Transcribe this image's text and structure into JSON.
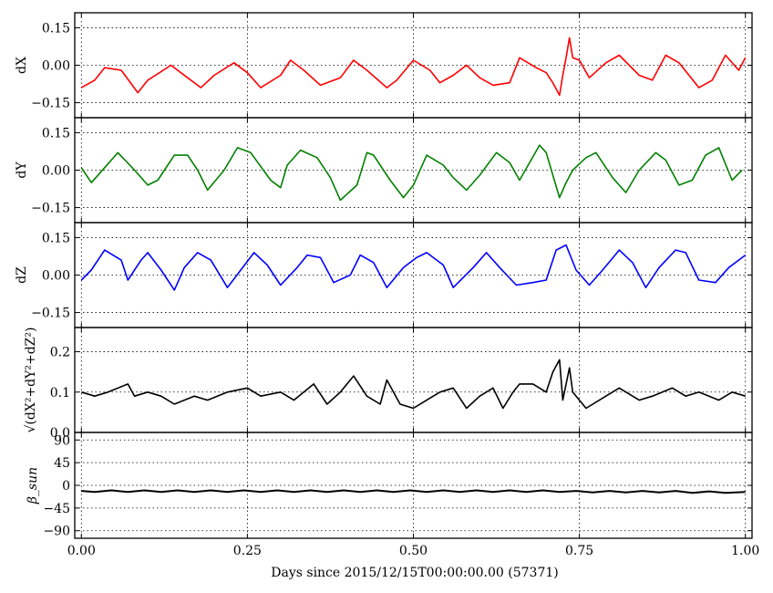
{
  "chart_data": {
    "type": "line",
    "xlabel": "Days since 2015/12/15T00:00:00.00 (57371)",
    "xlim": [
      -0.01,
      1.01
    ],
    "xticks": [
      0.0,
      0.25,
      0.5,
      0.75,
      1.0
    ],
    "xtick_labels": [
      "0.00",
      "0.25",
      "0.50",
      "0.75",
      "1.00"
    ],
    "grid": true,
    "panels": [
      {
        "ylabel": "dX",
        "ylim": [
          -0.21,
          0.21
        ],
        "yticks": [
          -0.15,
          0.0,
          0.15
        ],
        "ytick_labels": [
          "−0.15",
          "0.00",
          "0.15"
        ],
        "color": "#ff0000",
        "series": [
          {
            "x": [
              0.0,
              0.02,
              0.035,
              0.06,
              0.085,
              0.1,
              0.135,
              0.16,
              0.18,
              0.2,
              0.23,
              0.25,
              0.27,
              0.3,
              0.315,
              0.335,
              0.36,
              0.39,
              0.41,
              0.43,
              0.46,
              0.475,
              0.5,
              0.525,
              0.54,
              0.56,
              0.58,
              0.6,
              0.62,
              0.645,
              0.66,
              0.685,
              0.7,
              0.71,
              0.72,
              0.725,
              0.73,
              0.735,
              0.74,
              0.75,
              0.765,
              0.79,
              0.81,
              0.84,
              0.86,
              0.88,
              0.9,
              0.93,
              0.95,
              0.97,
              0.99,
              1.0
            ],
            "y": [
              -0.09,
              -0.06,
              -0.01,
              -0.02,
              -0.11,
              -0.06,
              0.0,
              -0.05,
              -0.09,
              -0.04,
              0.01,
              -0.03,
              -0.09,
              -0.04,
              0.02,
              -0.02,
              -0.08,
              -0.05,
              0.02,
              -0.02,
              -0.09,
              -0.06,
              0.02,
              -0.02,
              -0.07,
              -0.04,
              0.0,
              -0.05,
              -0.08,
              -0.07,
              0.03,
              -0.01,
              -0.03,
              -0.07,
              -0.12,
              -0.04,
              0.03,
              0.11,
              0.03,
              0.02,
              -0.05,
              0.01,
              0.04,
              -0.04,
              -0.06,
              0.04,
              0.01,
              -0.09,
              -0.06,
              0.04,
              -0.02,
              0.03
            ]
          }
        ]
      },
      {
        "ylabel": "dY",
        "ylim": [
          -0.21,
          0.21
        ],
        "yticks": [
          -0.15,
          0.0,
          0.15
        ],
        "ytick_labels": [
          "−0.15",
          "0.00",
          "0.15"
        ],
        "color": "#008000",
        "series": [
          {
            "x": [
              0.0,
              0.015,
              0.035,
              0.055,
              0.08,
              0.1,
              0.115,
              0.14,
              0.16,
              0.175,
              0.19,
              0.215,
              0.235,
              0.255,
              0.285,
              0.3,
              0.31,
              0.33,
              0.355,
              0.375,
              0.39,
              0.415,
              0.43,
              0.44,
              0.465,
              0.485,
              0.5,
              0.52,
              0.545,
              0.56,
              0.58,
              0.6,
              0.625,
              0.645,
              0.66,
              0.69,
              0.7,
              0.71,
              0.72,
              0.73,
              0.74,
              0.76,
              0.775,
              0.8,
              0.82,
              0.84,
              0.865,
              0.88,
              0.9,
              0.92,
              0.94,
              0.96,
              0.98,
              0.995
            ],
            "y": [
              0.01,
              -0.05,
              0.01,
              0.07,
              0.0,
              -0.06,
              -0.04,
              0.06,
              0.06,
              0.0,
              -0.08,
              0.0,
              0.09,
              0.07,
              -0.04,
              -0.07,
              0.02,
              0.08,
              0.05,
              -0.03,
              -0.12,
              -0.06,
              0.07,
              0.06,
              -0.04,
              -0.11,
              -0.06,
              0.06,
              0.02,
              -0.03,
              -0.08,
              -0.02,
              0.07,
              0.03,
              -0.04,
              0.1,
              0.07,
              -0.02,
              -0.11,
              -0.05,
              0.0,
              0.05,
              0.07,
              -0.03,
              -0.09,
              0.0,
              0.07,
              0.04,
              -0.06,
              -0.04,
              0.06,
              0.09,
              -0.04,
              0.0
            ]
          }
        ]
      },
      {
        "ylabel": "dZ",
        "ylim": [
          -0.21,
          0.21
        ],
        "yticks": [
          -0.15,
          0.0,
          0.15
        ],
        "ytick_labels": [
          "−0.15",
          "0.00",
          "0.15"
        ],
        "color": "#0000ff",
        "series": [
          {
            "x": [
              0.0,
              0.015,
              0.035,
              0.06,
              0.07,
              0.09,
              0.1,
              0.12,
              0.14,
              0.155,
              0.175,
              0.195,
              0.22,
              0.24,
              0.26,
              0.28,
              0.3,
              0.325,
              0.34,
              0.36,
              0.38,
              0.405,
              0.42,
              0.44,
              0.46,
              0.485,
              0.505,
              0.52,
              0.545,
              0.56,
              0.59,
              0.61,
              0.63,
              0.655,
              0.68,
              0.7,
              0.715,
              0.73,
              0.745,
              0.765,
              0.785,
              0.81,
              0.83,
              0.85,
              0.87,
              0.895,
              0.91,
              0.93,
              0.955,
              0.975,
              0.99,
              1.0
            ],
            "y": [
              -0.02,
              0.02,
              0.1,
              0.06,
              -0.02,
              0.06,
              0.09,
              0.02,
              -0.06,
              0.03,
              0.09,
              0.06,
              -0.05,
              0.02,
              0.09,
              0.04,
              -0.04,
              0.03,
              0.08,
              0.07,
              -0.03,
              0.0,
              0.08,
              0.05,
              -0.05,
              0.03,
              0.07,
              0.09,
              0.04,
              -0.05,
              0.03,
              0.09,
              0.03,
              -0.04,
              -0.03,
              -0.02,
              0.1,
              0.12,
              0.02,
              -0.04,
              0.02,
              0.1,
              0.05,
              -0.05,
              0.03,
              0.1,
              0.09,
              -0.02,
              -0.03,
              0.03,
              0.06,
              0.08
            ]
          }
        ]
      },
      {
        "ylabel": "√(dX²+dY²+dZ²)",
        "ylim": [
          0.0,
          0.26
        ],
        "yticks": [
          0.0,
          0.1,
          0.2
        ],
        "ytick_labels": [
          "0.0",
          "0.1",
          "0.2"
        ],
        "color": "#000000",
        "series": [
          {
            "x": [
              0.0,
              0.02,
              0.04,
              0.07,
              0.08,
              0.1,
              0.12,
              0.14,
              0.17,
              0.19,
              0.22,
              0.25,
              0.27,
              0.3,
              0.32,
              0.35,
              0.37,
              0.39,
              0.41,
              0.43,
              0.45,
              0.46,
              0.48,
              0.5,
              0.52,
              0.54,
              0.56,
              0.58,
              0.6,
              0.62,
              0.635,
              0.65,
              0.66,
              0.68,
              0.7,
              0.71,
              0.72,
              0.725,
              0.735,
              0.74,
              0.76,
              0.79,
              0.81,
              0.84,
              0.86,
              0.89,
              0.91,
              0.93,
              0.96,
              0.98,
              1.0
            ],
            "y": [
              0.1,
              0.09,
              0.1,
              0.12,
              0.09,
              0.1,
              0.09,
              0.07,
              0.09,
              0.08,
              0.1,
              0.11,
              0.09,
              0.1,
              0.08,
              0.12,
              0.07,
              0.1,
              0.14,
              0.09,
              0.07,
              0.13,
              0.07,
              0.06,
              0.08,
              0.1,
              0.11,
              0.06,
              0.09,
              0.11,
              0.06,
              0.1,
              0.12,
              0.12,
              0.1,
              0.15,
              0.18,
              0.08,
              0.16,
              0.1,
              0.06,
              0.09,
              0.11,
              0.08,
              0.09,
              0.11,
              0.09,
              0.1,
              0.08,
              0.1,
              0.09
            ]
          }
        ]
      },
      {
        "ylabel": "β_sun",
        "ylim": [
          -105,
          105
        ],
        "yticks": [
          -90,
          -45,
          0,
          45,
          90
        ],
        "ytick_labels": [
          "−90",
          "−45",
          "0",
          "45",
          "90"
        ],
        "color": "#000000",
        "series": [
          {
            "x": [
              0.0,
              0.02,
              0.045,
              0.07,
              0.095,
              0.12,
              0.145,
              0.17,
              0.195,
              0.22,
              0.245,
              0.27,
              0.295,
              0.32,
              0.345,
              0.37,
              0.395,
              0.42,
              0.445,
              0.47,
              0.495,
              0.52,
              0.545,
              0.57,
              0.595,
              0.62,
              0.645,
              0.67,
              0.695,
              0.72,
              0.745,
              0.77,
              0.795,
              0.82,
              0.845,
              0.87,
              0.895,
              0.92,
              0.945,
              0.97,
              1.0
            ],
            "y": [
              -11,
              -13,
              -10,
              -13,
              -10,
              -13,
              -10,
              -13,
              -10,
              -13,
              -10,
              -13,
              -10,
              -13,
              -10,
              -13,
              -10,
              -13,
              -10,
              -13,
              -10,
              -13,
              -10,
              -13,
              -10,
              -13,
              -10,
              -13,
              -10,
              -13,
              -11,
              -14,
              -11,
              -14,
              -11,
              -14,
              -11,
              -15,
              -12,
              -15,
              -13
            ]
          }
        ]
      }
    ]
  }
}
